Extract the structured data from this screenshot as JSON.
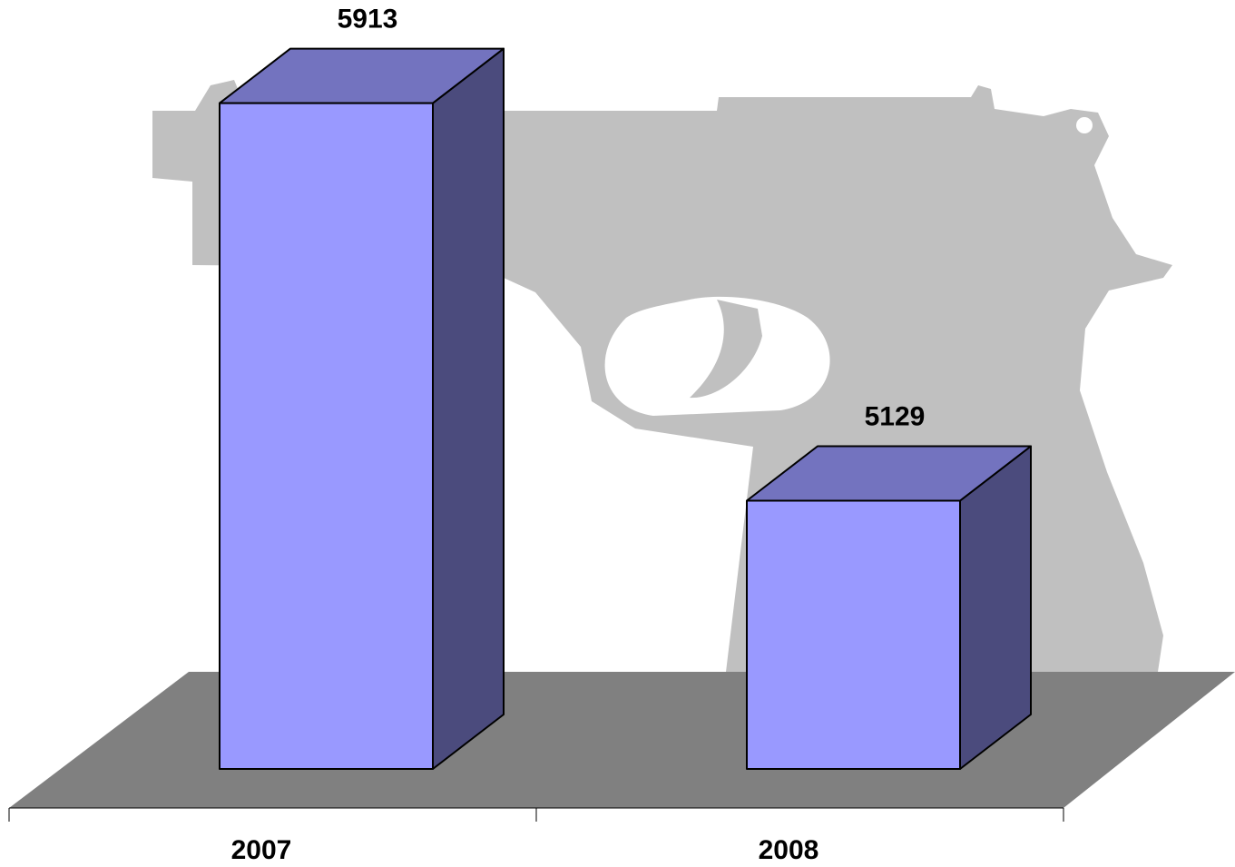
{
  "chart_data": {
    "type": "bar3d",
    "categories": [
      "2007",
      "2008"
    ],
    "values": [
      5913,
      5129
    ],
    "color": "#9999ff",
    "floor_color": "#808080",
    "ylim": [
      4600,
      6000
    ]
  }
}
